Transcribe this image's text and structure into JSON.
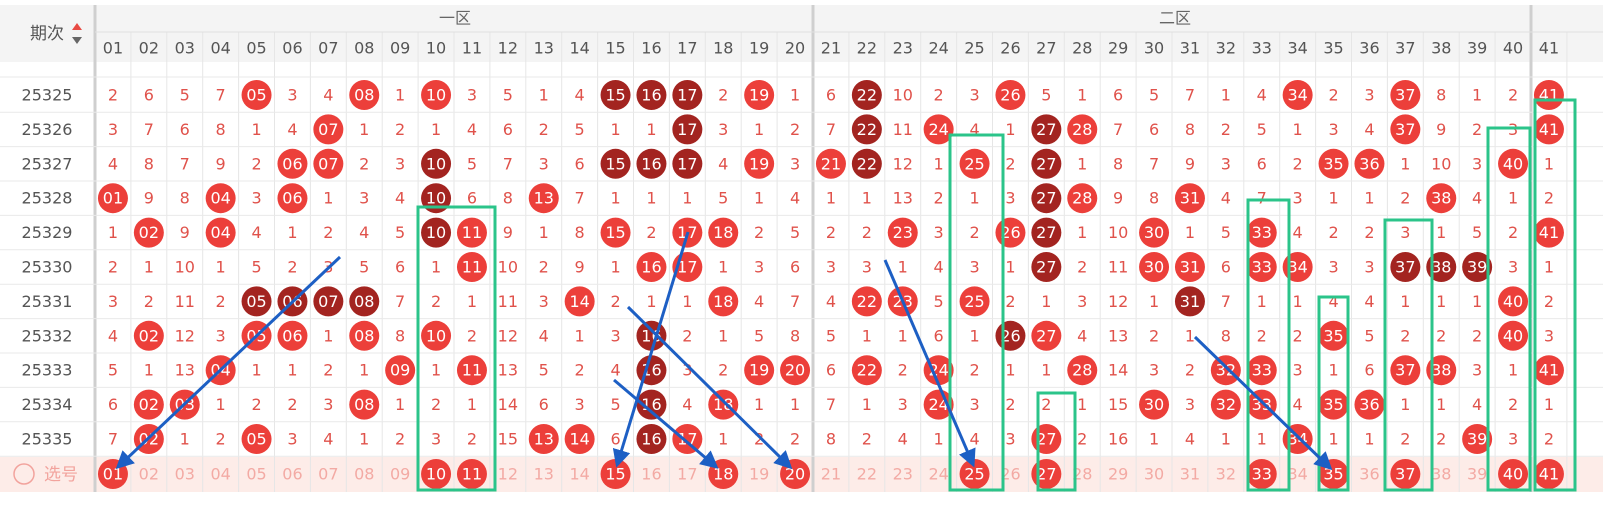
{
  "header": {
    "period_label": "期次",
    "zones": [
      "一区",
      "二区"
    ],
    "columns": [
      "01",
      "02",
      "03",
      "04",
      "05",
      "06",
      "07",
      "08",
      "09",
      "10",
      "11",
      "12",
      "13",
      "14",
      "15",
      "16",
      "17",
      "18",
      "19",
      "20",
      "21",
      "22",
      "23",
      "24",
      "25",
      "26",
      "27",
      "28",
      "29",
      "30",
      "31",
      "32",
      "33",
      "34",
      "35",
      "36",
      "37",
      "38",
      "39",
      "40",
      "41"
    ]
  },
  "ball_colors": {
    "r": "#ec3f3a",
    "d": "#a32420"
  },
  "rows": [
    {
      "period": "25325",
      "cells": [
        "2",
        "6",
        "5",
        "7",
        "05",
        "3",
        "4",
        "08",
        "1",
        "10",
        "3",
        "5",
        "1",
        "4",
        "15",
        "16",
        "17",
        "2",
        "19",
        "1",
        "6",
        "22",
        "10",
        "2",
        "3",
        "26",
        "5",
        "1",
        "6",
        "5",
        "7",
        "1",
        "4",
        "34",
        "2",
        "3",
        "37",
        "8",
        "1",
        "2",
        "41"
      ],
      "kinds": "....r..r.r....ddd.r..d...r.......r..r...r"
    },
    {
      "period": "25326",
      "cells": [
        "3",
        "7",
        "6",
        "8",
        "1",
        "4",
        "07",
        "1",
        "2",
        "1",
        "4",
        "6",
        "2",
        "5",
        "1",
        "1",
        "17",
        "3",
        "1",
        "2",
        "7",
        "22",
        "11",
        "24",
        "4",
        "1",
        "27",
        "28",
        "7",
        "6",
        "8",
        "2",
        "5",
        "1",
        "3",
        "4",
        "37",
        "9",
        "2",
        "3",
        "41"
      ],
      "kinds": "......r.........d....d.r..dr........r...r"
    },
    {
      "period": "25327",
      "cells": [
        "4",
        "8",
        "7",
        "9",
        "2",
        "06",
        "07",
        "2",
        "3",
        "10",
        "5",
        "7",
        "3",
        "6",
        "15",
        "16",
        "17",
        "4",
        "19",
        "3",
        "21",
        "22",
        "12",
        "1",
        "25",
        "2",
        "27",
        "1",
        "8",
        "7",
        "9",
        "3",
        "6",
        "2",
        "35",
        "36",
        "1",
        "10",
        "3",
        "40",
        "1"
      ],
      "kinds": ".....rr..d....ddd.r.rd..r.d.......rr...r."
    },
    {
      "period": "25328",
      "cells": [
        "01",
        "9",
        "8",
        "04",
        "3",
        "06",
        "1",
        "3",
        "4",
        "10",
        "6",
        "8",
        "13",
        "7",
        "1",
        "1",
        "1",
        "5",
        "1",
        "4",
        "1",
        "1",
        "13",
        "2",
        "1",
        "3",
        "27",
        "28",
        "9",
        "8",
        "31",
        "4",
        "7",
        "3",
        "1",
        "1",
        "2",
        "38",
        "4",
        "1",
        "2"
      ],
      "kinds": "r..r.r...d..r.............dr..r......r..."
    },
    {
      "period": "25329",
      "cells": [
        "1",
        "02",
        "9",
        "04",
        "4",
        "1",
        "2",
        "4",
        "5",
        "10",
        "11",
        "9",
        "1",
        "8",
        "15",
        "2",
        "17",
        "18",
        "2",
        "5",
        "2",
        "2",
        "23",
        "3",
        "2",
        "26",
        "27",
        "1",
        "10",
        "30",
        "1",
        "5",
        "33",
        "4",
        "2",
        "2",
        "3",
        "1",
        "5",
        "2",
        "41"
      ],
      "kinds": ".r.r.....dr...r.rr....r..rd..r..r.......r"
    },
    {
      "period": "25330",
      "cells": [
        "2",
        "1",
        "10",
        "1",
        "5",
        "2",
        "3",
        "5",
        "6",
        "1",
        "11",
        "10",
        "2",
        "9",
        "1",
        "16",
        "17",
        "1",
        "3",
        "6",
        "3",
        "3",
        "1",
        "4",
        "3",
        "1",
        "27",
        "2",
        "11",
        "30",
        "31",
        "6",
        "33",
        "34",
        "3",
        "3",
        "37",
        "38",
        "39",
        "3",
        "1"
      ],
      "kinds": "..........r....rr.........d..rr.rr..ddd.."
    },
    {
      "period": "25331",
      "cells": [
        "3",
        "2",
        "11",
        "2",
        "05",
        "06",
        "07",
        "08",
        "7",
        "2",
        "1",
        "11",
        "3",
        "14",
        "2",
        "1",
        "1",
        "18",
        "4",
        "7",
        "4",
        "22",
        "23",
        "5",
        "25",
        "2",
        "1",
        "3",
        "12",
        "1",
        "31",
        "7",
        "1",
        "1",
        "4",
        "4",
        "1",
        "1",
        "1",
        "40",
        "2"
      ],
      "kinds": "....dddd.....r...r...rr.r.....d........r."
    },
    {
      "period": "25332",
      "cells": [
        "4",
        "02",
        "12",
        "3",
        "05",
        "06",
        "1",
        "08",
        "8",
        "10",
        "2",
        "12",
        "4",
        "1",
        "3",
        "16",
        "2",
        "1",
        "5",
        "8",
        "5",
        "1",
        "1",
        "6",
        "1",
        "26",
        "27",
        "4",
        "13",
        "2",
        "1",
        "8",
        "2",
        "2",
        "35",
        "5",
        "2",
        "2",
        "2",
        "40",
        "3"
      ],
      "kinds": ".r..rr.r.r.....d.........dr.......r....r."
    },
    {
      "period": "25333",
      "cells": [
        "5",
        "1",
        "13",
        "04",
        "1",
        "1",
        "2",
        "1",
        "09",
        "1",
        "11",
        "13",
        "5",
        "2",
        "4",
        "16",
        "3",
        "2",
        "19",
        "20",
        "6",
        "22",
        "2",
        "24",
        "2",
        "1",
        "1",
        "28",
        "14",
        "3",
        "2",
        "32",
        "33",
        "3",
        "1",
        "6",
        "37",
        "38",
        "3",
        "1",
        "41"
      ],
      "kinds": "...r....r.r....d..rr.r.r...r...rr...rr..r"
    },
    {
      "period": "25334",
      "cells": [
        "6",
        "02",
        "03",
        "1",
        "2",
        "2",
        "3",
        "08",
        "1",
        "2",
        "1",
        "14",
        "6",
        "3",
        "5",
        "16",
        "4",
        "18",
        "1",
        "1",
        "7",
        "1",
        "3",
        "24",
        "3",
        "2",
        "2",
        "1",
        "15",
        "30",
        "3",
        "32",
        "33",
        "4",
        "35",
        "36",
        "1",
        "1",
        "4",
        "2",
        "1"
      ],
      "kinds": ".rr....r.......d.r.....r.....r.rr.rr....."
    },
    {
      "period": "25335",
      "cells": [
        "7",
        "02",
        "1",
        "2",
        "05",
        "3",
        "4",
        "1",
        "2",
        "3",
        "2",
        "15",
        "13",
        "14",
        "6",
        "16",
        "17",
        "1",
        "2",
        "2",
        "8",
        "2",
        "4",
        "1",
        "4",
        "3",
        "27",
        "2",
        "16",
        "1",
        "4",
        "1",
        "1",
        "34",
        "1",
        "1",
        "2",
        "2",
        "39",
        "3",
        "2"
      ],
      "kinds": ".r..r.......rr.dr.........r......r....r.."
    }
  ],
  "pick_row": {
    "label": "选号",
    "kinds": "r........rr...r..r.r....r.r.....r.r.r..rr"
  }
}
